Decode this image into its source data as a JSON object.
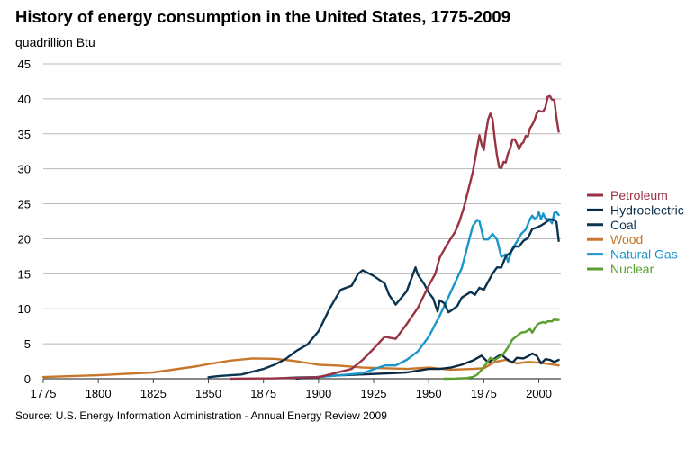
{
  "chart_data": {
    "type": "line",
    "title": "History of energy consumption in the United States, 1775-2009",
    "ylabel": "quadrillion Btu",
    "xlabel": "",
    "source": "Source: U.S. Energy Information Administration - Annual Energy Review 2009",
    "xlim": [
      1775,
      2010
    ],
    "ylim": [
      0,
      45
    ],
    "x_ticks": [
      1775,
      1800,
      1825,
      1850,
      1875,
      1900,
      1925,
      1950,
      1975,
      2000
    ],
    "y_ticks": [
      0,
      5,
      10,
      15,
      20,
      25,
      30,
      35,
      40,
      45
    ],
    "grid": "horizontal",
    "legend_position": "right",
    "series": [
      {
        "name": "Petroleum",
        "color": "#993344",
        "points": [
          [
            1860,
            0.01
          ],
          [
            1880,
            0.05
          ],
          [
            1890,
            0.15
          ],
          [
            1900,
            0.23
          ],
          [
            1905,
            0.6
          ],
          [
            1910,
            1.0
          ],
          [
            1915,
            1.4
          ],
          [
            1920,
            2.7
          ],
          [
            1925,
            4.3
          ],
          [
            1930,
            6.0
          ],
          [
            1935,
            5.7
          ],
          [
            1940,
            7.8
          ],
          [
            1945,
            10.1
          ],
          [
            1950,
            13.3
          ],
          [
            1953,
            15.0
          ],
          [
            1955,
            17.3
          ],
          [
            1958,
            19.0
          ],
          [
            1960,
            20.0
          ],
          [
            1962,
            21.0
          ],
          [
            1964,
            22.5
          ],
          [
            1966,
            24.5
          ],
          [
            1968,
            27.0
          ],
          [
            1970,
            29.5
          ],
          [
            1972,
            33.0
          ],
          [
            1973,
            34.8
          ],
          [
            1974,
            33.5
          ],
          [
            1975,
            32.7
          ],
          [
            1976,
            35.2
          ],
          [
            1977,
            37.1
          ],
          [
            1978,
            37.9
          ],
          [
            1979,
            37.1
          ],
          [
            1980,
            34.2
          ],
          [
            1981,
            31.9
          ],
          [
            1982,
            30.2
          ],
          [
            1983,
            30.1
          ],
          [
            1984,
            31.0
          ],
          [
            1985,
            30.9
          ],
          [
            1986,
            32.2
          ],
          [
            1987,
            32.9
          ],
          [
            1988,
            34.2
          ],
          [
            1989,
            34.2
          ],
          [
            1990,
            33.6
          ],
          [
            1991,
            32.8
          ],
          [
            1992,
            33.5
          ],
          [
            1993,
            33.8
          ],
          [
            1994,
            34.7
          ],
          [
            1995,
            34.6
          ],
          [
            1996,
            35.8
          ],
          [
            1997,
            36.3
          ],
          [
            1998,
            36.9
          ],
          [
            1999,
            37.9
          ],
          [
            2000,
            38.3
          ],
          [
            2001,
            38.2
          ],
          [
            2002,
            38.2
          ],
          [
            2003,
            38.8
          ],
          [
            2004,
            40.3
          ],
          [
            2005,
            40.4
          ],
          [
            2006,
            39.9
          ],
          [
            2007,
            39.8
          ],
          [
            2008,
            37.3
          ],
          [
            2009,
            35.3
          ]
        ]
      },
      {
        "name": "Hydroelectric",
        "color": "#0a2a44",
        "points": [
          [
            1890,
            0.02
          ],
          [
            1910,
            0.5
          ],
          [
            1930,
            0.75
          ],
          [
            1940,
            0.9
          ],
          [
            1950,
            1.4
          ],
          [
            1955,
            1.4
          ],
          [
            1960,
            1.6
          ],
          [
            1965,
            2.0
          ],
          [
            1970,
            2.6
          ],
          [
            1974,
            3.3
          ],
          [
            1977,
            2.3
          ],
          [
            1980,
            2.9
          ],
          [
            1983,
            3.5
          ],
          [
            1985,
            2.9
          ],
          [
            1988,
            2.3
          ],
          [
            1990,
            3.0
          ],
          [
            1993,
            2.9
          ],
          [
            1995,
            3.2
          ],
          [
            1997,
            3.6
          ],
          [
            1999,
            3.3
          ],
          [
            2001,
            2.2
          ],
          [
            2003,
            2.8
          ],
          [
            2005,
            2.7
          ],
          [
            2007,
            2.4
          ],
          [
            2009,
            2.7
          ]
        ]
      },
      {
        "name": "Coal",
        "color": "#0a3450",
        "points": [
          [
            1850,
            0.22
          ],
          [
            1855,
            0.4
          ],
          [
            1860,
            0.5
          ],
          [
            1865,
            0.6
          ],
          [
            1870,
            1.0
          ],
          [
            1875,
            1.4
          ],
          [
            1880,
            2.0
          ],
          [
            1885,
            2.8
          ],
          [
            1890,
            4.0
          ],
          [
            1895,
            4.9
          ],
          [
            1900,
            6.8
          ],
          [
            1905,
            10.0
          ],
          [
            1910,
            12.7
          ],
          [
            1915,
            13.3
          ],
          [
            1918,
            15.0
          ],
          [
            1920,
            15.5
          ],
          [
            1925,
            14.7
          ],
          [
            1930,
            13.6
          ],
          [
            1932,
            12.0
          ],
          [
            1935,
            10.6
          ],
          [
            1940,
            12.5
          ],
          [
            1944,
            15.9
          ],
          [
            1945,
            14.9
          ],
          [
            1948,
            13.5
          ],
          [
            1950,
            12.3
          ],
          [
            1952,
            11.5
          ],
          [
            1954,
            9.6
          ],
          [
            1955,
            11.2
          ],
          [
            1957,
            10.8
          ],
          [
            1959,
            9.5
          ],
          [
            1961,
            9.9
          ],
          [
            1963,
            10.4
          ],
          [
            1965,
            11.6
          ],
          [
            1967,
            12.0
          ],
          [
            1969,
            12.4
          ],
          [
            1971,
            12.0
          ],
          [
            1973,
            13.0
          ],
          [
            1975,
            12.7
          ],
          [
            1977,
            13.9
          ],
          [
            1979,
            15.0
          ],
          [
            1981,
            15.9
          ],
          [
            1983,
            15.9
          ],
          [
            1985,
            17.5
          ],
          [
            1987,
            18.0
          ],
          [
            1989,
            18.9
          ],
          [
            1991,
            18.9
          ],
          [
            1993,
            19.7
          ],
          [
            1995,
            20.1
          ],
          [
            1997,
            21.4
          ],
          [
            1999,
            21.6
          ],
          [
            2001,
            21.9
          ],
          [
            2003,
            22.3
          ],
          [
            2005,
            22.8
          ],
          [
            2007,
            22.7
          ],
          [
            2008,
            22.4
          ],
          [
            2009,
            19.7
          ]
        ]
      },
      {
        "name": "Wood",
        "color": "#c8762a",
        "points": [
          [
            1775,
            0.25
          ],
          [
            1800,
            0.5
          ],
          [
            1825,
            0.9
          ],
          [
            1845,
            1.8
          ],
          [
            1850,
            2.1
          ],
          [
            1860,
            2.6
          ],
          [
            1870,
            2.9
          ],
          [
            1880,
            2.85
          ],
          [
            1885,
            2.7
          ],
          [
            1890,
            2.5
          ],
          [
            1895,
            2.25
          ],
          [
            1900,
            2.0
          ],
          [
            1910,
            1.85
          ],
          [
            1920,
            1.6
          ],
          [
            1930,
            1.5
          ],
          [
            1940,
            1.4
          ],
          [
            1950,
            1.6
          ],
          [
            1960,
            1.3
          ],
          [
            1970,
            1.4
          ],
          [
            1975,
            1.5
          ],
          [
            1980,
            2.4
          ],
          [
            1985,
            2.7
          ],
          [
            1990,
            2.2
          ],
          [
            1995,
            2.4
          ],
          [
            2000,
            2.3
          ],
          [
            2005,
            2.1
          ],
          [
            2009,
            1.9
          ]
        ]
      },
      {
        "name": "Natural Gas",
        "color": "#1a96cc",
        "points": [
          [
            1885,
            0.1
          ],
          [
            1890,
            0.2
          ],
          [
            1900,
            0.25
          ],
          [
            1910,
            0.5
          ],
          [
            1920,
            0.8
          ],
          [
            1930,
            1.9
          ],
          [
            1935,
            1.9
          ],
          [
            1940,
            2.7
          ],
          [
            1945,
            3.9
          ],
          [
            1950,
            6.0
          ],
          [
            1955,
            9.0
          ],
          [
            1960,
            12.4
          ],
          [
            1965,
            15.8
          ],
          [
            1970,
            21.8
          ],
          [
            1972,
            22.7
          ],
          [
            1973,
            22.5
          ],
          [
            1975,
            19.9
          ],
          [
            1977,
            19.9
          ],
          [
            1979,
            20.7
          ],
          [
            1981,
            19.9
          ],
          [
            1983,
            17.4
          ],
          [
            1985,
            17.8
          ],
          [
            1986,
            16.7
          ],
          [
            1988,
            18.6
          ],
          [
            1990,
            19.6
          ],
          [
            1992,
            20.7
          ],
          [
            1994,
            21.3
          ],
          [
            1996,
            22.8
          ],
          [
            1997,
            23.3
          ],
          [
            1998,
            22.9
          ],
          [
            1999,
            23.0
          ],
          [
            2000,
            23.8
          ],
          [
            2001,
            22.8
          ],
          [
            2002,
            23.6
          ],
          [
            2003,
            22.9
          ],
          [
            2004,
            22.9
          ],
          [
            2005,
            22.6
          ],
          [
            2006,
            22.2
          ],
          [
            2007,
            23.7
          ],
          [
            2008,
            23.8
          ],
          [
            2009,
            23.4
          ]
        ]
      },
      {
        "name": "Nuclear",
        "color": "#5a9e2e",
        "points": [
          [
            1957,
            0.002
          ],
          [
            1962,
            0.03
          ],
          [
            1967,
            0.09
          ],
          [
            1970,
            0.24
          ],
          [
            1972,
            0.58
          ],
          [
            1974,
            1.27
          ],
          [
            1976,
            2.1
          ],
          [
            1978,
            3.0
          ],
          [
            1979,
            2.8
          ],
          [
            1980,
            2.7
          ],
          [
            1982,
            3.1
          ],
          [
            1984,
            3.6
          ],
          [
            1986,
            4.5
          ],
          [
            1988,
            5.6
          ],
          [
            1990,
            6.1
          ],
          [
            1992,
            6.6
          ],
          [
            1994,
            6.7
          ],
          [
            1996,
            7.1
          ],
          [
            1997,
            6.6
          ],
          [
            1998,
            7.1
          ],
          [
            1999,
            7.6
          ],
          [
            2000,
            7.9
          ],
          [
            2001,
            8.0
          ],
          [
            2002,
            8.1
          ],
          [
            2003,
            7.96
          ],
          [
            2004,
            8.2
          ],
          [
            2005,
            8.2
          ],
          [
            2006,
            8.2
          ],
          [
            2007,
            8.5
          ],
          [
            2008,
            8.4
          ],
          [
            2009,
            8.4
          ]
        ]
      }
    ]
  }
}
